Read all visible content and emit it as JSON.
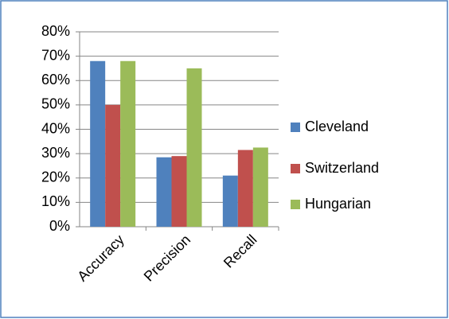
{
  "chart_data": {
    "type": "bar",
    "categories": [
      "Accuracy",
      "Precision",
      "Recall"
    ],
    "series": [
      {
        "name": "Cleveland",
        "color": "#4f81bd",
        "values": [
          68,
          28.5,
          21
        ]
      },
      {
        "name": "Switzerland",
        "color": "#c0504d",
        "values": [
          50,
          29,
          31.5
        ]
      },
      {
        "name": "Hungarian",
        "color": "#9bbb59",
        "values": [
          68,
          65,
          32.5
        ]
      }
    ],
    "ylim": [
      0,
      80
    ],
    "yticks": [
      {
        "value": 0,
        "label": "0%"
      },
      {
        "value": 10,
        "label": "10%"
      },
      {
        "value": 20,
        "label": "20%"
      },
      {
        "value": 30,
        "label": "30%"
      },
      {
        "value": 40,
        "label": "40%"
      },
      {
        "value": 50,
        "label": "50%"
      },
      {
        "value": 60,
        "label": "60%"
      },
      {
        "value": 70,
        "label": "70%"
      },
      {
        "value": 80,
        "label": "80%"
      }
    ],
    "grid": true,
    "legend": "right"
  }
}
